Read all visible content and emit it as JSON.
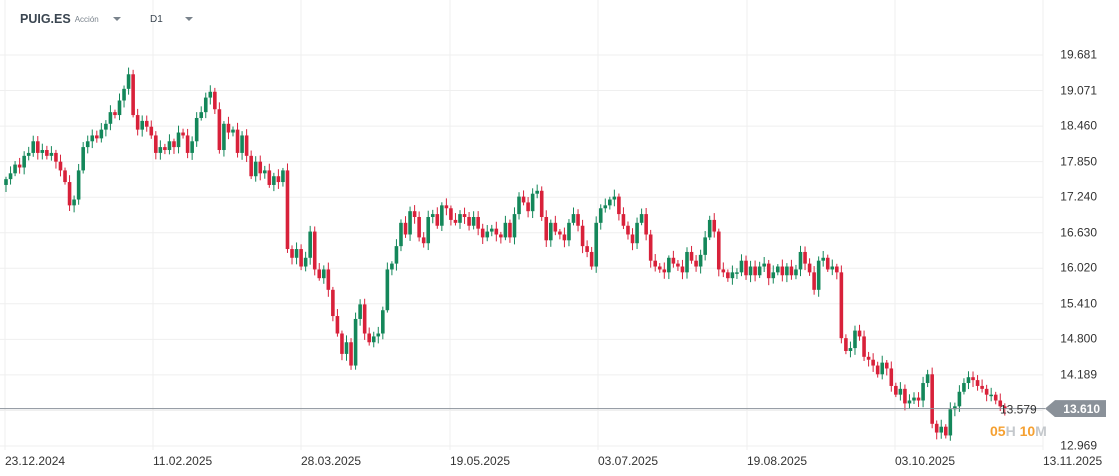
{
  "header": {
    "symbol": "PUIG.ES",
    "type": "Acción",
    "timeframe": "D1"
  },
  "price_axis": [
    "19.681",
    "19.071",
    "18.460",
    "17.850",
    "17.240",
    "16.630",
    "16.020",
    "15.410",
    "14.800",
    "14.189",
    "13.579",
    "12.969"
  ],
  "date_axis": [
    "23.12.2024",
    "11.02.2025",
    "28.03.2025",
    "19.05.2025",
    "03.07.2025",
    "19.08.2025",
    "03.10.2025",
    "13.11.2025"
  ],
  "current_price": "13.610",
  "countdown": {
    "hours": "05",
    "h_unit": "H",
    "minutes": "10",
    "m_unit": "M"
  },
  "colors": {
    "up": "#14875a",
    "down": "#d8213a",
    "grid": "#efefef",
    "price_line": "#8a9199"
  },
  "chart_data": {
    "type": "candlestick",
    "ylim": [
      12.969,
      19.681
    ],
    "note": "open = previous close",
    "first_open": 17.45,
    "close": [
      17.55,
      17.65,
      17.8,
      17.75,
      17.95,
      18.0,
      18.2,
      18.0,
      18.05,
      17.95,
      18.0,
      17.85,
      17.7,
      17.5,
      17.1,
      17.2,
      17.7,
      18.1,
      18.2,
      18.3,
      18.25,
      18.4,
      18.5,
      18.7,
      18.65,
      18.9,
      19.1,
      19.35,
      18.65,
      18.4,
      18.55,
      18.45,
      18.3,
      18.0,
      18.1,
      18.05,
      18.2,
      18.1,
      18.35,
      18.3,
      18.0,
      18.2,
      18.6,
      18.7,
      18.95,
      19.05,
      18.75,
      18.05,
      18.5,
      18.35,
      18.4,
      18.0,
      18.3,
      17.95,
      17.6,
      17.85,
      17.65,
      17.7,
      17.45,
      17.6,
      17.5,
      17.7,
      16.35,
      16.2,
      16.35,
      16.05,
      16.2,
      16.65,
      16.0,
      15.85,
      16.0,
      15.65,
      15.2,
      14.9,
      14.55,
      14.75,
      14.35,
      15.15,
      15.4,
      14.9,
      14.75,
      14.85,
      14.9,
      15.3,
      16.0,
      16.1,
      16.4,
      16.8,
      16.6,
      17.0,
      16.9,
      16.55,
      16.45,
      16.9,
      16.95,
      16.75,
      17.1,
      17.05,
      16.85,
      16.8,
      16.95,
      16.9,
      16.75,
      16.9,
      16.7,
      16.55,
      16.65,
      16.7,
      16.6,
      16.55,
      16.8,
      16.55,
      16.95,
      17.25,
      17.15,
      17.0,
      17.3,
      17.35,
      16.9,
      16.5,
      16.8,
      16.65,
      16.6,
      16.5,
      16.8,
      16.95,
      16.75,
      16.4,
      16.3,
      16.05,
      16.8,
      17.05,
      17.1,
      17.2,
      17.25,
      16.95,
      16.75,
      16.6,
      16.45,
      16.8,
      16.95,
      16.6,
      16.15,
      16.05,
      16.0,
      15.95,
      16.2,
      16.1,
      16.05,
      15.95,
      16.3,
      16.15,
      16.05,
      16.25,
      16.55,
      16.85,
      16.65,
      16.0,
      15.95,
      15.85,
      15.95,
      15.95,
      16.15,
      15.9,
      16.05,
      15.9,
      16.05,
      16.1,
      15.85,
      15.95,
      16.05,
      15.9,
      16.05,
      15.9,
      16.0,
      16.3,
      16.1,
      15.95,
      15.65,
      16.15,
      16.2,
      16.0,
      16.05,
      15.95,
      14.82,
      14.6,
      14.65,
      14.95,
      14.85,
      14.5,
      14.45,
      14.35,
      14.2,
      14.4,
      14.3,
      14.0,
      13.85,
      13.95,
      13.7,
      13.75,
      13.8,
      13.75,
      14.05,
      14.2,
      13.35,
      13.2,
      13.3,
      13.15,
      13.6,
      13.65,
      13.9,
      14.05,
      14.15,
      14.1,
      14.0,
      13.95,
      13.85,
      13.85,
      13.75,
      13.65,
      13.61
    ]
  }
}
